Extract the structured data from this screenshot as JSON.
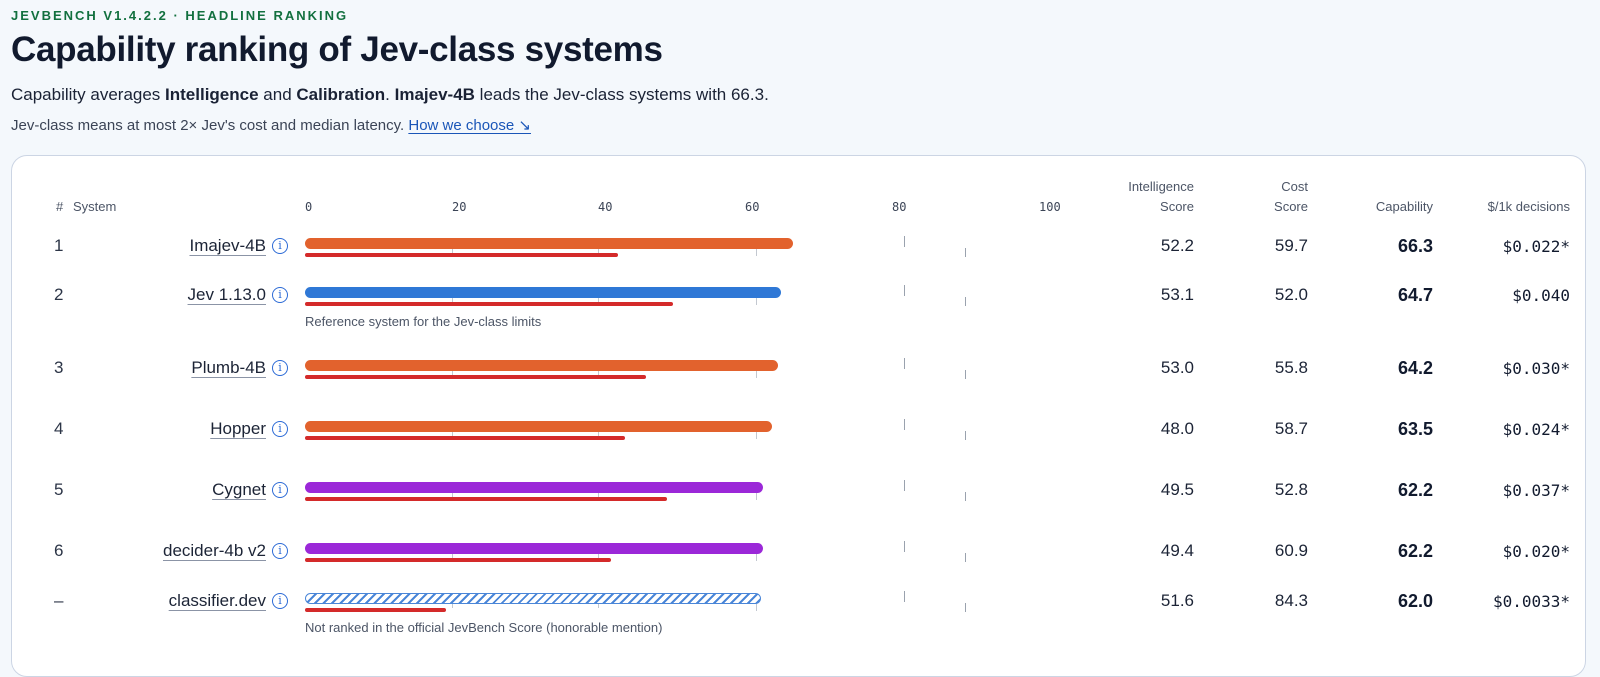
{
  "eyebrow": "JEVBENCH V1.4.2.2 · HEADLINE RANKING",
  "title": "Capability ranking of Jev-class systems",
  "subtitle": {
    "t1": "Capability averages ",
    "b1": "Intelligence",
    "t2": " and ",
    "b2": "Calibration",
    "t3": ". ",
    "b3": "Imajev-4B",
    "t4": " leads the Jev-class systems with 66.3."
  },
  "note": {
    "text": "Jev-class means at most 2× Jev's cost and median latency. ",
    "link": "How we choose ↘"
  },
  "headers": {
    "rank": "#",
    "system": "System",
    "intelligence_1": "Intelligence",
    "intelligence_2": "Score",
    "cost_1": "Cost",
    "cost_2": "Score",
    "capability": "Capability",
    "price": "$/1k decisions"
  },
  "axis_ticks": [
    "0",
    "20",
    "40",
    "60",
    "80",
    "100"
  ],
  "chart_data": {
    "type": "bar",
    "xlim": [
      0,
      100
    ],
    "categories": [
      "Imajev-4B",
      "Jev 1.13.0",
      "Plumb-4B",
      "Hopper",
      "Cygnet",
      "decider-4b v2",
      "classifier.dev"
    ],
    "series": [
      {
        "name": "Capability",
        "values": [
          66.3,
          64.7,
          64.2,
          63.5,
          62.2,
          62.2,
          62.0
        ]
      }
    ],
    "secondary_values": [
      42.5,
      50.0,
      46.3,
      43.5,
      49.2,
      41.6,
      19.2
    ]
  },
  "colors": {
    "orange": "#e2622d",
    "blue": "#2f78d6",
    "purple": "#9b28d8",
    "red": "#d42a2a",
    "green_eyebrow": "#12703f"
  },
  "rows": [
    {
      "rank": "1",
      "name": "Imajev-4B",
      "intelligence": "52.2",
      "cost": "59.7",
      "capability": "66.3",
      "price": "$0.022*",
      "color": "orange",
      "caption": ""
    },
    {
      "rank": "2",
      "name": "Jev 1.13.0",
      "intelligence": "53.1",
      "cost": "52.0",
      "capability": "64.7",
      "price": "$0.040",
      "color": "blue",
      "caption": "Reference system for the Jev-class limits"
    },
    {
      "rank": "3",
      "name": "Plumb-4B",
      "intelligence": "53.0",
      "cost": "55.8",
      "capability": "64.2",
      "price": "$0.030*",
      "color": "orange",
      "caption": ""
    },
    {
      "rank": "4",
      "name": "Hopper",
      "intelligence": "48.0",
      "cost": "58.7",
      "capability": "63.5",
      "price": "$0.024*",
      "color": "orange",
      "caption": ""
    },
    {
      "rank": "5",
      "name": "Cygnet",
      "intelligence": "49.5",
      "cost": "52.8",
      "capability": "62.2",
      "price": "$0.037*",
      "color": "purple",
      "caption": ""
    },
    {
      "rank": "6",
      "name": "decider-4b v2",
      "intelligence": "49.4",
      "cost": "60.9",
      "capability": "62.2",
      "price": "$0.020*",
      "color": "purple",
      "caption": ""
    },
    {
      "rank": "–",
      "name": "classifier.dev",
      "intelligence": "51.6",
      "cost": "84.3",
      "capability": "62.0",
      "price": "$0.0033*",
      "color": "hatched",
      "caption": "Not ranked in the official JevBench Score (honorable mention)"
    }
  ]
}
